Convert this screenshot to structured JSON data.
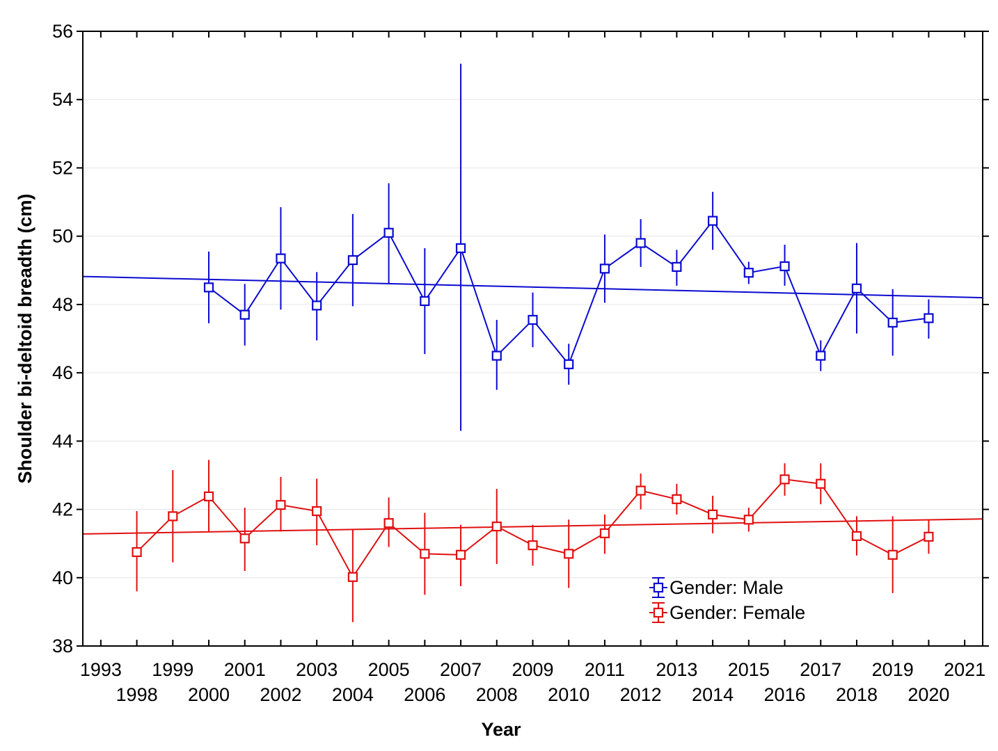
{
  "chart_data": {
    "type": "line",
    "title": "",
    "xlabel": "Year",
    "ylabel": "Shoulder bi-deltoid breadth (cm)",
    "ylim": [
      38,
      56
    ],
    "yticks": [
      38,
      40,
      42,
      44,
      46,
      48,
      50,
      52,
      54,
      56
    ],
    "categories": [
      "1993",
      "1998",
      "1999",
      "2000",
      "2001",
      "2002",
      "2003",
      "2004",
      "2005",
      "2006",
      "2007",
      "2008",
      "2009",
      "2010",
      "2011",
      "2012",
      "2013",
      "2014",
      "2015",
      "2016",
      "2017",
      "2018",
      "2019",
      "2020",
      "2021"
    ],
    "grid": true,
    "legend": {
      "position": "bottom-right",
      "entries": [
        "Gender: Male",
        "Gender: Female"
      ]
    },
    "series": [
      {
        "name": "Gender: Male",
        "color": "#0a0ad0",
        "values": [
          null,
          null,
          null,
          48.5,
          47.7,
          49.35,
          47.97,
          49.3,
          50.1,
          48.1,
          49.65,
          46.5,
          47.55,
          46.25,
          49.05,
          49.8,
          49.1,
          50.45,
          48.93,
          49.12,
          46.5,
          48.47,
          47.47,
          47.6,
          null
        ],
        "lower": [
          null,
          null,
          null,
          47.45,
          46.8,
          47.85,
          46.95,
          47.95,
          48.6,
          46.55,
          44.3,
          45.5,
          46.75,
          45.65,
          48.05,
          49.1,
          48.55,
          49.6,
          48.6,
          48.55,
          46.05,
          47.15,
          46.5,
          47.0,
          null
        ],
        "upper": [
          null,
          null,
          null,
          49.55,
          48.6,
          50.85,
          48.95,
          50.65,
          51.55,
          49.65,
          55.05,
          47.55,
          48.35,
          46.85,
          50.05,
          50.5,
          49.6,
          51.3,
          49.25,
          49.75,
          46.95,
          49.8,
          48.45,
          48.15,
          null
        ],
        "trend": [
          48.82,
          48.2
        ]
      },
      {
        "name": "Gender: Female",
        "color": "#e01010",
        "values": [
          null,
          40.75,
          41.8,
          42.38,
          41.15,
          42.13,
          41.95,
          40.02,
          41.6,
          40.7,
          40.67,
          41.5,
          40.95,
          40.7,
          41.3,
          42.55,
          42.3,
          41.85,
          41.7,
          42.88,
          42.75,
          41.22,
          40.67,
          41.2,
          null
        ],
        "lower": [
          null,
          39.6,
          40.45,
          41.35,
          40.2,
          41.35,
          40.95,
          38.7,
          40.9,
          39.5,
          39.75,
          40.4,
          40.35,
          39.7,
          40.7,
          42.0,
          41.85,
          41.3,
          41.35,
          42.4,
          42.15,
          40.65,
          39.55,
          40.7,
          null
        ],
        "upper": [
          null,
          41.95,
          43.15,
          43.45,
          42.05,
          42.95,
          42.9,
          41.4,
          42.35,
          41.9,
          41.55,
          42.6,
          41.55,
          41.7,
          41.85,
          43.05,
          42.75,
          42.4,
          42.05,
          43.35,
          43.35,
          41.8,
          41.8,
          41.7,
          null
        ],
        "trend": [
          41.28,
          41.72
        ]
      }
    ]
  }
}
